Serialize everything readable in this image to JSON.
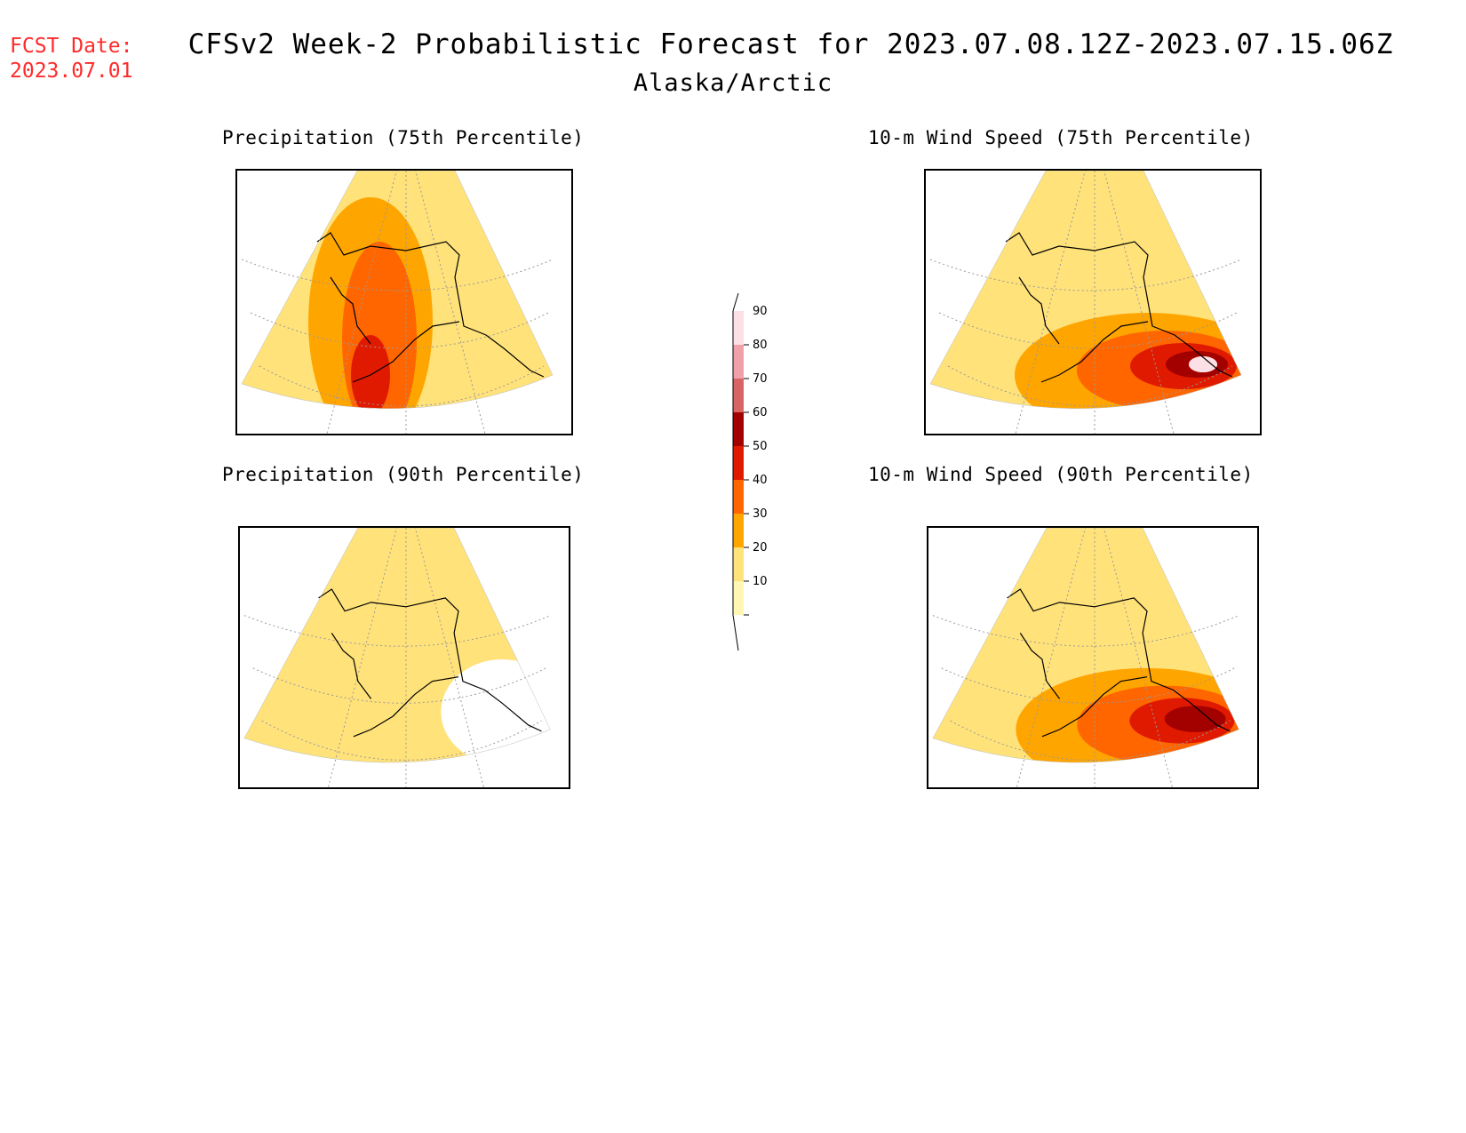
{
  "header": {
    "fcst_label": "FCST Date:",
    "fcst_date": "2023.07.01",
    "title": "CFSv2 Week-2 Probabilistic Forecast for 2023.07.08.12Z-2023.07.15.06Z",
    "subtitle": "Alaska/Arctic"
  },
  "panels": [
    {
      "title": "Precipitation (75th Percentile)",
      "variable": "precipitation",
      "percentile": 75,
      "max_level": 50
    },
    {
      "title": "10-m Wind Speed (75th Percentile)",
      "variable": "wind",
      "percentile": 75,
      "max_level": 90
    },
    {
      "title": "Precipitation (90th Percentile)",
      "variable": "precipitation",
      "percentile": 90,
      "max_level": 20
    },
    {
      "title": "10-m Wind Speed (90th Percentile)",
      "variable": "wind",
      "percentile": 90,
      "max_level": 60
    }
  ],
  "colorbar": {
    "labels": [
      "10",
      "20",
      "30",
      "40",
      "50",
      "60",
      "70",
      "80",
      "90"
    ],
    "colors": {
      "10": "#fff7b3",
      "20": "#ffe27a",
      "30": "#ffa500",
      "40": "#ff6600",
      "50": "#e01a00",
      "60": "#a30000",
      "70": "#d96464",
      "80": "#f0a0a8",
      "90": "#fde0e6"
    }
  }
}
